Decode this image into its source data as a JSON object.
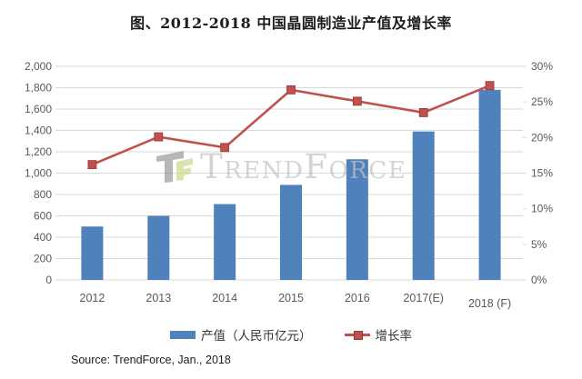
{
  "title": "图、2012-2018 中国晶圆制造业产值及增长率",
  "watermark": {
    "brand": "TrendForce"
  },
  "legend": {
    "bars_label": "产值（人民币亿元）",
    "line_label": "增长率"
  },
  "source_note": "Source: TrendForce, Jan., 2018",
  "colors": {
    "bar": "#4f81bd",
    "line": "#c0504d",
    "marker_edge": "#953735",
    "grid": "#d9d9d9",
    "axis_text": "#595959",
    "title_text": "#1c1c1c",
    "watermark_text": "#c2c2c2",
    "logo_gray": "#9a9a9a",
    "logo_green": "#ccd98b",
    "background": "#ffffff"
  },
  "chart_data": {
    "type": "bar",
    "subtype": "combo-bar-line-dual-axis",
    "title": "图、2012-2018 中国晶圆制造业产值及增长率",
    "categories": [
      "2012",
      "2013",
      "2014",
      "2015",
      "2016",
      "2017(E)",
      "2018 (F)"
    ],
    "series": [
      {
        "name": "产值（人民币亿元）",
        "kind": "bar",
        "axis": "left",
        "values": [
          500,
          600,
          710,
          890,
          1130,
          1390,
          1780
        ]
      },
      {
        "name": "增长率",
        "kind": "line",
        "axis": "right",
        "values": [
          16.2,
          20.1,
          18.6,
          26.7,
          25.1,
          23.5,
          27.3
        ],
        "unit": "%"
      }
    ],
    "left_axis": {
      "min": 0,
      "max": 2000,
      "step": 200,
      "tick_labels": [
        "0",
        "200",
        "400",
        "600",
        "800",
        "1,000",
        "1,200",
        "1,400",
        "1,600",
        "1,800",
        "2,000"
      ]
    },
    "right_axis": {
      "min": 0,
      "max": 30,
      "step": 5,
      "tick_labels": [
        "0%",
        "5%",
        "10%",
        "15%",
        "20%",
        "25%",
        "30%"
      ]
    },
    "grid": true,
    "legend_position": "bottom"
  }
}
